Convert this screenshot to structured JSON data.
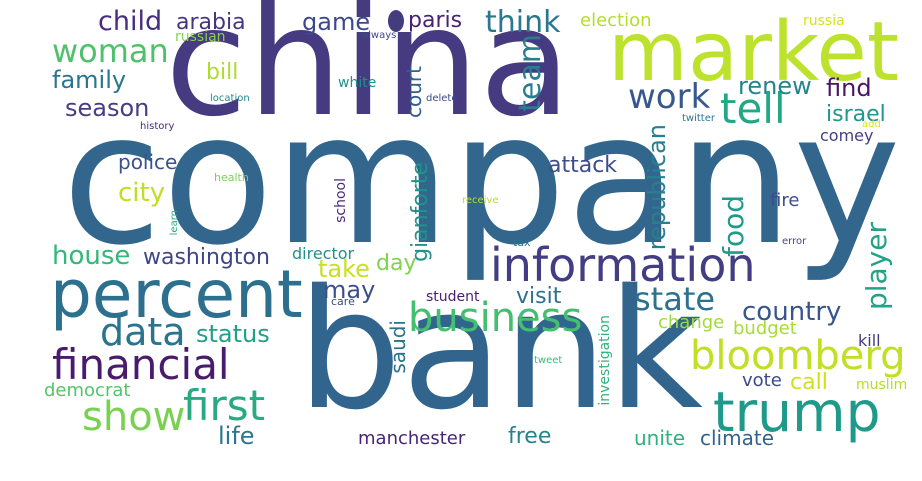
{
  "wordcloud": {
    "background": "#ffffff",
    "words": {
      "company": {
        "text": "company",
        "color": "#32668d"
      },
      "china": {
        "text": "china",
        "color": "#463a80"
      },
      "bank": {
        "text": "bank",
        "color": "#32658d"
      },
      "market": {
        "text": "market",
        "color": "#bde22e"
      },
      "percent": {
        "text": "percent",
        "color": "#2d708e"
      },
      "information": {
        "text": "information",
        "color": "#433d84"
      },
      "trump": {
        "text": "trump",
        "color": "#1f9a8a"
      },
      "bloomberg": {
        "text": "bloomberg",
        "color": "#c2df23"
      },
      "business": {
        "text": "business",
        "color": "#44bf70"
      },
      "financial": {
        "text": "financial",
        "color": "#481b6d"
      },
      "data": {
        "text": "data",
        "color": "#2b748e"
      },
      "show": {
        "text": "show",
        "color": "#7ad151"
      },
      "first": {
        "text": "first",
        "color": "#2aaa83"
      },
      "woman": {
        "text": "woman",
        "color": "#4fc16b"
      },
      "tell": {
        "text": "tell",
        "color": "#22a884"
      },
      "work": {
        "text": "work",
        "color": "#38588c"
      },
      "state": {
        "text": "state",
        "color": "#2c718e"
      },
      "country": {
        "text": "country",
        "color": "#39568c"
      },
      "think": {
        "text": "think",
        "color": "#2a778e"
      },
      "game": {
        "text": "game",
        "color": "#3e4989"
      },
      "child": {
        "text": "child",
        "color": "#472f7d"
      },
      "season": {
        "text": "season",
        "color": "#433e85"
      },
      "family": {
        "text": "family",
        "color": "#2a768e"
      },
      "house": {
        "text": "house",
        "color": "#35b779"
      },
      "washington": {
        "text": "washington",
        "color": "#404588"
      },
      "status": {
        "text": "status",
        "color": "#1fa188"
      },
      "life": {
        "text": "life",
        "color": "#2a778e"
      },
      "city": {
        "text": "city",
        "color": "#bfdf25"
      },
      "police": {
        "text": "police",
        "color": "#3b518b"
      },
      "bill": {
        "text": "bill",
        "color": "#addc30"
      },
      "arabia": {
        "text": "arabia",
        "color": "#453581"
      },
      "paris": {
        "text": "paris",
        "color": "#482173"
      },
      "election": {
        "text": "election",
        "color": "#b5de2b"
      },
      "renew": {
        "text": "renew",
        "color": "#25838e"
      },
      "find": {
        "text": "find",
        "color": "#481668"
      },
      "israel": {
        "text": "israel",
        "color": "#1f988b"
      },
      "comey": {
        "text": "comey",
        "color": "#433e85"
      },
      "attack": {
        "text": "attack",
        "color": "#3d4d8a"
      },
      "take": {
        "text": "take",
        "color": "#c8e020"
      },
      "may": {
        "text": "may",
        "color": "#3c4f8a"
      },
      "day": {
        "text": "day",
        "color": "#7fd34e"
      },
      "visit": {
        "text": "visit",
        "color": "#2c718e"
      },
      "change": {
        "text": "change",
        "color": "#a0da39"
      },
      "budget": {
        "text": "budget",
        "color": "#a8db34"
      },
      "vote": {
        "text": "vote",
        "color": "#3e4989"
      },
      "call": {
        "text": "call",
        "color": "#d0e11c"
      },
      "muslim": {
        "text": "muslim",
        "color": "#b2dd2d"
      },
      "kill": {
        "text": "kill",
        "color": "#453882"
      },
      "fire": {
        "text": "fire",
        "color": "#3e4c8a"
      },
      "free": {
        "text": "free",
        "color": "#26828e"
      },
      "unite": {
        "text": "unite",
        "color": "#2db27d"
      },
      "climate": {
        "text": "climate",
        "color": "#33638d"
      },
      "manchester": {
        "text": "manchester",
        "color": "#482475"
      },
      "student": {
        "text": "student",
        "color": "#481d6f"
      },
      "director": {
        "text": "director",
        "color": "#21918c"
      },
      "democrat": {
        "text": "democrat",
        "color": "#52c569"
      },
      "russian": {
        "text": "russian",
        "color": "#84d44b"
      },
      "russia": {
        "text": "russia",
        "color": "#d2e21b"
      },
      "white": {
        "text": "white",
        "color": "#21918c"
      },
      "always": {
        "text": "always",
        "color": "#3e4a89"
      },
      "location": {
        "text": "location",
        "color": "#24868e"
      },
      "delete": {
        "text": "delete",
        "color": "#3f4788"
      },
      "history": {
        "text": "history",
        "color": "#472d7b"
      },
      "twitter": {
        "text": "twitter",
        "color": "#2a778e"
      },
      "add": {
        "text": "add",
        "color": "#dde318"
      },
      "health": {
        "text": "health",
        "color": "#7cd250"
      },
      "receive": {
        "text": "receive",
        "color": "#b8de29"
      },
      "tax": {
        "text": "tax",
        "color": "#2c738e"
      },
      "error": {
        "text": "error",
        "color": "#3e4989"
      },
      "care": {
        "text": "care",
        "color": "#3f4889"
      },
      "tweet": {
        "text": "tweet",
        "color": "#3dbc74"
      },
      "court": {
        "text": "court",
        "color": "#355f8d"
      },
      "team": {
        "text": "team",
        "color": "#277f8e"
      },
      "gianforte": {
        "text": "gianforte",
        "color": "#20928c"
      },
      "republican": {
        "text": "republican",
        "color": "#27808e"
      },
      "food": {
        "text": "food",
        "color": "#1e9b8a"
      },
      "player": {
        "text": "player",
        "color": "#20a386"
      },
      "saudi": {
        "text": "saudi",
        "color": "#2c728e"
      },
      "school": {
        "text": "school",
        "color": "#472a7a"
      },
      "learn": {
        "text": "learn",
        "color": "#26ad81"
      },
      "investigation": {
        "text": "investigation",
        "color": "#2db27d"
      }
    }
  }
}
